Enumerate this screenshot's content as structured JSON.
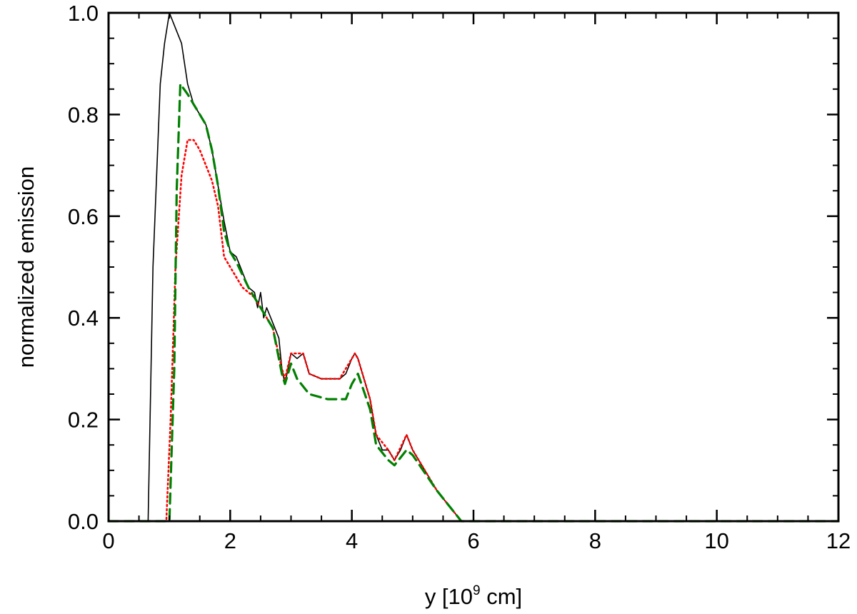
{
  "chart_data": {
    "type": "line",
    "title": "",
    "xlabel": {
      "pre": "y [10",
      "sup": "9",
      "post": " cm]"
    },
    "ylabel": "normalized emission",
    "xlim": [
      0,
      12
    ],
    "ylim": [
      0,
      1.0
    ],
    "grid": false,
    "legend": "none",
    "x_ticks": [
      0,
      2,
      4,
      6,
      8,
      10,
      12
    ],
    "x_tick_labels": [
      "0",
      "2",
      "4",
      "6",
      "8",
      "10",
      "12"
    ],
    "y_ticks": [
      0,
      0.2,
      0.4,
      0.6,
      0.8,
      1.0
    ],
    "y_tick_labels": [
      "0.0",
      "0.2",
      "0.4",
      "0.6",
      "0.8",
      "1.0"
    ],
    "series": [
      {
        "style": "solid",
        "color": "#000000",
        "points": [
          [
            0,
            0
          ],
          [
            0.65,
            0
          ],
          [
            0.73,
            0.5
          ],
          [
            0.85,
            0.86
          ],
          [
            0.92,
            0.94
          ],
          [
            1.0,
            1.0
          ],
          [
            1.1,
            0.97
          ],
          [
            1.2,
            0.94
          ],
          [
            1.3,
            0.86
          ],
          [
            1.4,
            0.82
          ],
          [
            1.5,
            0.8
          ],
          [
            1.6,
            0.78
          ],
          [
            1.7,
            0.73
          ],
          [
            1.8,
            0.66
          ],
          [
            1.9,
            0.59
          ],
          [
            2.0,
            0.53
          ],
          [
            2.1,
            0.52
          ],
          [
            2.2,
            0.49
          ],
          [
            2.3,
            0.46
          ],
          [
            2.4,
            0.45
          ],
          [
            2.45,
            0.42
          ],
          [
            2.5,
            0.45
          ],
          [
            2.55,
            0.4
          ],
          [
            2.6,
            0.42
          ],
          [
            2.7,
            0.39
          ],
          [
            2.8,
            0.36
          ],
          [
            2.85,
            0.3
          ],
          [
            2.9,
            0.27
          ],
          [
            3.0,
            0.33
          ],
          [
            3.1,
            0.32
          ],
          [
            3.2,
            0.33
          ],
          [
            3.3,
            0.29
          ],
          [
            3.5,
            0.28
          ],
          [
            3.8,
            0.28
          ],
          [
            3.9,
            0.29
          ],
          [
            4.0,
            0.32
          ],
          [
            4.05,
            0.33
          ],
          [
            4.1,
            0.32
          ],
          [
            4.2,
            0.28
          ],
          [
            4.3,
            0.24
          ],
          [
            4.4,
            0.17
          ],
          [
            4.5,
            0.14
          ],
          [
            4.6,
            0.14
          ],
          [
            4.7,
            0.12
          ],
          [
            4.8,
            0.14
          ],
          [
            4.9,
            0.17
          ],
          [
            5.0,
            0.14
          ],
          [
            5.2,
            0.1
          ],
          [
            5.4,
            0.06
          ],
          [
            5.6,
            0.03
          ],
          [
            5.8,
            0
          ],
          [
            12,
            0
          ]
        ]
      },
      {
        "style": "dotted",
        "color": "#ff0000",
        "points": [
          [
            0,
            0
          ],
          [
            0.95,
            0
          ],
          [
            1.02,
            0.2
          ],
          [
            1.1,
            0.5
          ],
          [
            1.2,
            0.68
          ],
          [
            1.3,
            0.75
          ],
          [
            1.4,
            0.75
          ],
          [
            1.5,
            0.73
          ],
          [
            1.6,
            0.7
          ],
          [
            1.7,
            0.67
          ],
          [
            1.8,
            0.62
          ],
          [
            1.9,
            0.52
          ],
          [
            2.0,
            0.5
          ],
          [
            2.2,
            0.46
          ],
          [
            2.4,
            0.44
          ],
          [
            2.5,
            0.42
          ],
          [
            2.7,
            0.38
          ],
          [
            2.85,
            0.3
          ],
          [
            2.9,
            0.28
          ],
          [
            3.0,
            0.33
          ],
          [
            3.2,
            0.33
          ],
          [
            3.3,
            0.29
          ],
          [
            3.5,
            0.28
          ],
          [
            3.8,
            0.28
          ],
          [
            4.0,
            0.32
          ],
          [
            4.05,
            0.33
          ],
          [
            4.1,
            0.32
          ],
          [
            4.3,
            0.24
          ],
          [
            4.4,
            0.17
          ],
          [
            4.6,
            0.14
          ],
          [
            4.7,
            0.12
          ],
          [
            4.9,
            0.17
          ],
          [
            5.0,
            0.14
          ],
          [
            5.4,
            0.06
          ],
          [
            5.8,
            0
          ],
          [
            12,
            0
          ]
        ]
      },
      {
        "style": "dashed",
        "color": "#008000",
        "points": [
          [
            0,
            0
          ],
          [
            1.0,
            0
          ],
          [
            1.08,
            0.3
          ],
          [
            1.12,
            0.65
          ],
          [
            1.18,
            0.86
          ],
          [
            1.3,
            0.84
          ],
          [
            1.4,
            0.82
          ],
          [
            1.5,
            0.8
          ],
          [
            1.6,
            0.78
          ],
          [
            1.7,
            0.73
          ],
          [
            1.8,
            0.66
          ],
          [
            1.9,
            0.57
          ],
          [
            2.0,
            0.53
          ],
          [
            2.1,
            0.51
          ],
          [
            2.3,
            0.46
          ],
          [
            2.4,
            0.44
          ],
          [
            2.5,
            0.42
          ],
          [
            2.7,
            0.38
          ],
          [
            2.85,
            0.29
          ],
          [
            2.9,
            0.27
          ],
          [
            3.0,
            0.31
          ],
          [
            3.1,
            0.28
          ],
          [
            3.3,
            0.25
          ],
          [
            3.6,
            0.24
          ],
          [
            3.9,
            0.24
          ],
          [
            4.0,
            0.27
          ],
          [
            4.1,
            0.29
          ],
          [
            4.3,
            0.22
          ],
          [
            4.4,
            0.15
          ],
          [
            4.6,
            0.12
          ],
          [
            4.7,
            0.11
          ],
          [
            4.9,
            0.14
          ],
          [
            5.0,
            0.13
          ],
          [
            5.4,
            0.06
          ],
          [
            5.8,
            0
          ],
          [
            12,
            0
          ]
        ]
      }
    ]
  }
}
